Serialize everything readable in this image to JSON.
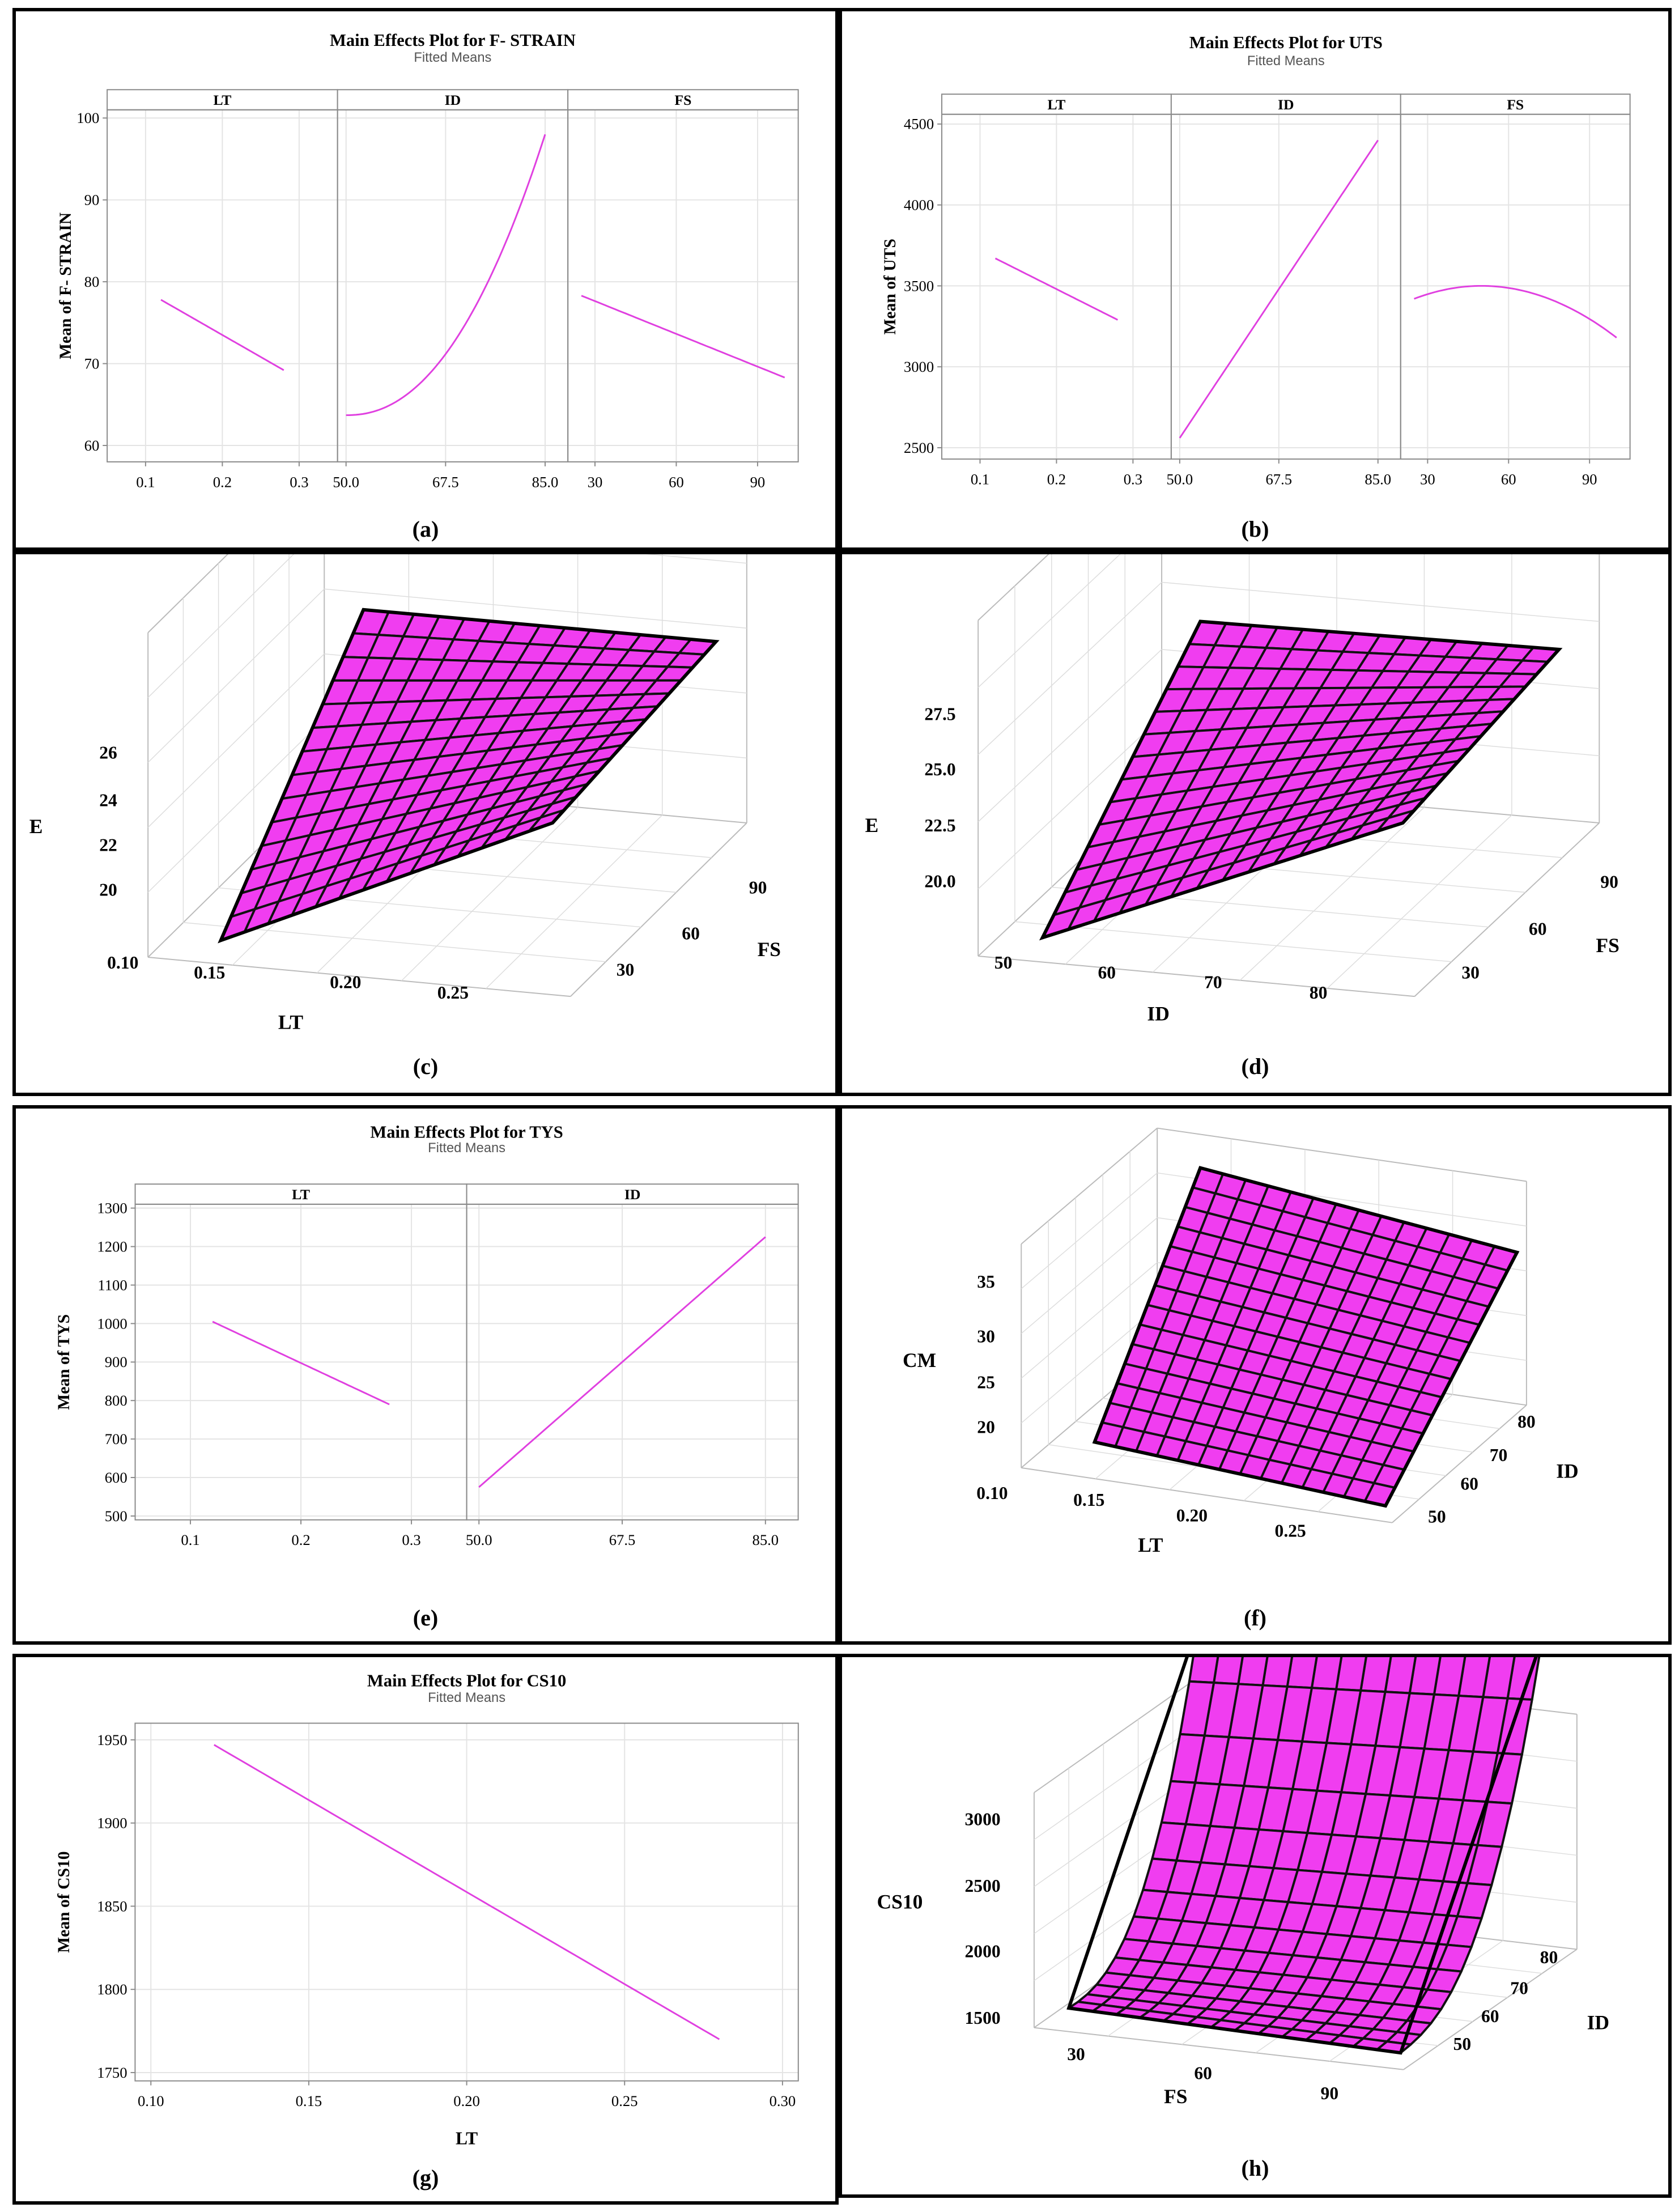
{
  "colors": {
    "line": "#e040e0",
    "surface": "#f03df0",
    "grid": "#e4e4e4",
    "frame": "#8a8a8a"
  },
  "chart_data": [
    {
      "id": "a",
      "type": "line",
      "caption": "(a)",
      "title": "Main Effects Plot for F- STRAIN",
      "subtitle": "Fitted Means",
      "ylabel": "Mean of F- STRAIN",
      "ylim": [
        58,
        101
      ],
      "yticks": [
        60,
        70,
        80,
        90,
        100
      ],
      "ytick_labels": [
        "60",
        "70",
        "80",
        "90",
        "100"
      ],
      "panels": [
        {
          "name": "LT",
          "xlim": [
            0.05,
            0.35
          ],
          "xticks": [
            0.1,
            0.2,
            0.3
          ],
          "xtick_labels": [
            "0.1",
            "0.2",
            "0.3"
          ],
          "x": [
            0.12,
            0.28
          ],
          "y": [
            77.8,
            69.2
          ],
          "curve": "linear"
        },
        {
          "name": "ID",
          "xlim": [
            48.5,
            89
          ],
          "xticks": [
            50,
            67.5,
            85
          ],
          "xtick_labels": [
            "50.0",
            "67.5",
            "85.0"
          ],
          "x": [
            50,
            85
          ],
          "y": [
            63.7,
            98.0
          ],
          "curve": "power"
        },
        {
          "name": "FS",
          "xlim": [
            20,
            105
          ],
          "xticks": [
            30,
            60,
            90
          ],
          "xtick_labels": [
            "30",
            "60",
            "90"
          ],
          "x": [
            25,
            100
          ],
          "y": [
            78.3,
            68.3
          ],
          "curve": "linear"
        }
      ]
    },
    {
      "id": "b",
      "type": "line",
      "caption": "(b)",
      "title": "Main Effects Plot for UTS",
      "subtitle": "Fitted Means",
      "ylabel": "Mean of UTS",
      "ylim": [
        2430,
        4560
      ],
      "yticks": [
        2500,
        3000,
        3500,
        4000,
        4500
      ],
      "ytick_labels": [
        "2500",
        "3000",
        "3500",
        "4000",
        "4500"
      ],
      "panels": [
        {
          "name": "LT",
          "xlim": [
            0.05,
            0.35
          ],
          "xticks": [
            0.1,
            0.2,
            0.3
          ],
          "xtick_labels": [
            "0.1",
            "0.2",
            "0.3"
          ],
          "x": [
            0.12,
            0.28
          ],
          "y": [
            3670,
            3290
          ],
          "curve": "linear"
        },
        {
          "name": "ID",
          "xlim": [
            48.5,
            89
          ],
          "xticks": [
            50,
            67.5,
            85
          ],
          "xtick_labels": [
            "50.0",
            "67.5",
            "85.0"
          ],
          "x": [
            50,
            85
          ],
          "y": [
            2560,
            4400
          ],
          "curve": "linear"
        },
        {
          "name": "FS",
          "xlim": [
            20,
            105
          ],
          "xticks": [
            30,
            60,
            90
          ],
          "xtick_labels": [
            "30",
            "60",
            "90"
          ],
          "x": [
            25,
            100
          ],
          "y": [
            3420,
            3170
          ],
          "curve": "quadratic",
          "peak": [
            50,
            3500
          ]
        }
      ]
    },
    {
      "id": "c",
      "type": "surface",
      "caption": "(c)",
      "zlabel": "E",
      "xlabel": "LT",
      "ylabel": "FS",
      "zticks": [
        "20",
        "22",
        "24",
        "26"
      ],
      "xticks": [
        "0.10",
        "0.15",
        "0.20",
        "0.25"
      ],
      "yticks": [
        "30",
        "60",
        "90"
      ]
    },
    {
      "id": "d",
      "type": "surface",
      "caption": "(d)",
      "zlabel": "E",
      "xlabel": "ID",
      "ylabel": "FS",
      "zticks": [
        "20.0",
        "22.5",
        "25.0",
        "27.5"
      ],
      "xticks": [
        "50",
        "60",
        "70",
        "80"
      ],
      "yticks": [
        "30",
        "60",
        "90"
      ]
    },
    {
      "id": "e",
      "type": "line",
      "caption": "(e)",
      "title": "Main Effects Plot for TYS",
      "subtitle": "Fitted Means",
      "ylabel": "Mean of TYS",
      "ylim": [
        490,
        1310
      ],
      "yticks": [
        500,
        600,
        700,
        800,
        900,
        1000,
        1100,
        1200,
        1300
      ],
      "ytick_labels": [
        "500",
        "600",
        "700",
        "800",
        "900",
        "1000",
        "1100",
        "1200",
        "1300"
      ],
      "panels": [
        {
          "name": "LT",
          "xlim": [
            0.05,
            0.35
          ],
          "xticks": [
            0.1,
            0.2,
            0.3
          ],
          "xtick_labels": [
            "0.1",
            "0.2",
            "0.3"
          ],
          "x": [
            0.12,
            0.28
          ],
          "y": [
            1005,
            790
          ],
          "curve": "linear"
        },
        {
          "name": "ID",
          "xlim": [
            48.5,
            89
          ],
          "xticks": [
            50,
            67.5,
            85
          ],
          "xtick_labels": [
            "50.0",
            "67.5",
            "85.0"
          ],
          "x": [
            50,
            85
          ],
          "y": [
            575,
            1225
          ],
          "curve": "linear"
        }
      ]
    },
    {
      "id": "f",
      "type": "surface",
      "caption": "(f)",
      "zlabel": "CM",
      "xlabel": "LT",
      "ylabel": "ID",
      "zticks": [
        "20",
        "25",
        "30",
        "35"
      ],
      "xticks": [
        "0.10",
        "0.15",
        "0.20",
        "0.25"
      ],
      "yticks": [
        "50",
        "60",
        "70",
        "80"
      ]
    },
    {
      "id": "g",
      "type": "line",
      "caption": "(g)",
      "title": "Main Effects Plot for CS10",
      "subtitle": "Fitted Means",
      "ylabel": "Mean of CS10",
      "xlabel": "LT",
      "ylim": [
        1745,
        1960
      ],
      "yticks": [
        1750,
        1800,
        1850,
        1900,
        1950
      ],
      "ytick_labels": [
        "1750",
        "1800",
        "1850",
        "1900",
        "1950"
      ],
      "panels": [
        {
          "name": "",
          "xlim": [
            0.095,
            0.305
          ],
          "xticks": [
            0.1,
            0.15,
            0.2,
            0.25,
            0.3
          ],
          "xtick_labels": [
            "0.10",
            "0.15",
            "0.20",
            "0.25",
            "0.30"
          ],
          "x": [
            0.12,
            0.28
          ],
          "y": [
            1947,
            1770
          ],
          "curve": "linear"
        }
      ]
    },
    {
      "id": "h",
      "type": "surface",
      "caption": "(h)",
      "zlabel": "CS10",
      "xlabel": "FS",
      "ylabel": "ID",
      "zticks": [
        "1500",
        "2000",
        "2500",
        "3000"
      ],
      "xticks": [
        "30",
        "60",
        "90"
      ],
      "yticks": [
        "50",
        "60",
        "70",
        "80"
      ]
    }
  ]
}
